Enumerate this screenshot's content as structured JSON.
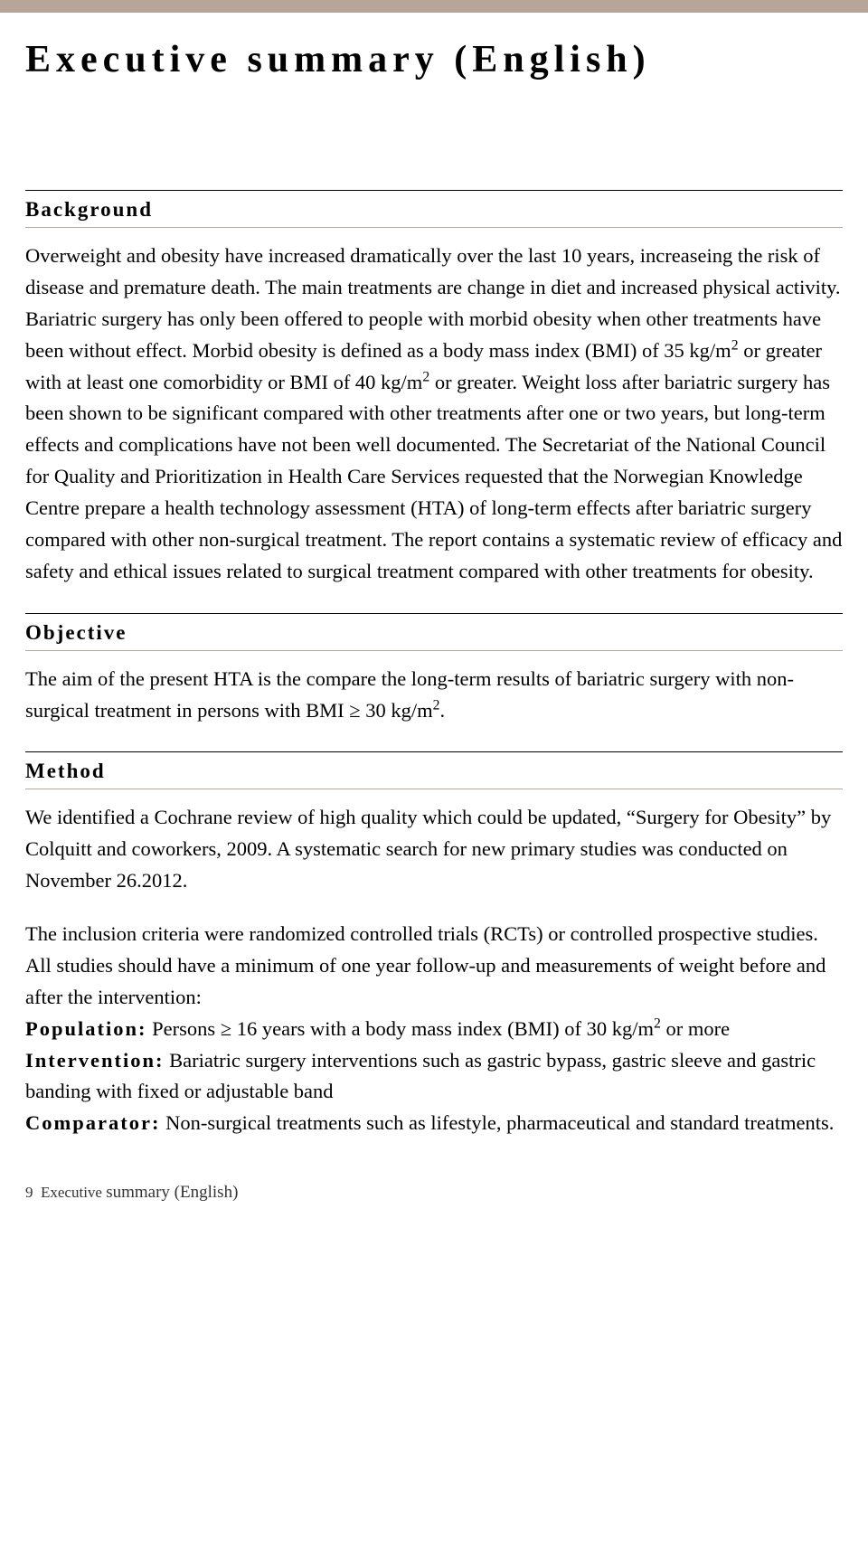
{
  "page": {
    "title": "Executive summary (English)",
    "top_bar_color": "#b8a59a",
    "background_color": "#ffffff",
    "text_color": "#000000"
  },
  "sections": {
    "background": {
      "heading": "Background",
      "body": "Overweight and obesity have increased dramatically over the last 10 years, increaseing the risk of disease and premature death. The main treatments are change in diet and increased physical activity. Bariatric surgery has only been offered to people with morbid obesity when other treatments have been without effect. Morbid obesity is defined as a body mass index (BMI) of 35 kg/m² or greater with at least one comorbidity or BMI of 40 kg/m² or greater. Weight loss after bariatric surgery has been shown to be significant compared with other treatments after one or two years, but long-term effects and complications have not been well documented. The Secretariat of the National Council for Quality and Prioritization in Health Care Services requested that the Norwegian Knowledge Centre prepare a health technology assessment (HTA) of long-term effects after bariatric surgery compared with other non-surgical treatment. The report contains a systematic review of efficacy and safety and ethical issues related to surgical treatment compared with other treatments for obesity."
    },
    "objective": {
      "heading": "Objective",
      "body": "The aim of the present HTA is the compare the long-term results of bariatric surgery with non-surgical treatment in persons with BMI ≥ 30 kg/m²."
    },
    "method": {
      "heading": "Method",
      "para1": "We identified a Cochrane review of high quality which could be updated, “Surgery for Obesity” by Colquitt and coworkers, 2009. A systematic search for new primary studies was conducted on November 26.2012.",
      "para2_intro": "The inclusion criteria were randomized controlled trials (RCTs) or controlled prospective studies. All studies should have a minimum of one year follow-up and measurements of weight before and after the intervention:",
      "criteria": {
        "population_label": "Population:",
        "population_text": " Persons ≥ 16 years with a body mass index (BMI) of 30 kg/m² or more",
        "intervention_label": "Intervention:",
        "intervention_text": " Bariatric surgery interventions such as gastric bypass, gastric sleeve and gastric banding with fixed or adjustable band",
        "comparator_label": "Comparator:",
        "comparator_text": " Non-surgical treatments such as lifestyle, pharmaceutical and standard treatments."
      }
    }
  },
  "footer": {
    "page_number": "9",
    "label_part1": "Executive ",
    "label_part2": "summary (English)"
  }
}
